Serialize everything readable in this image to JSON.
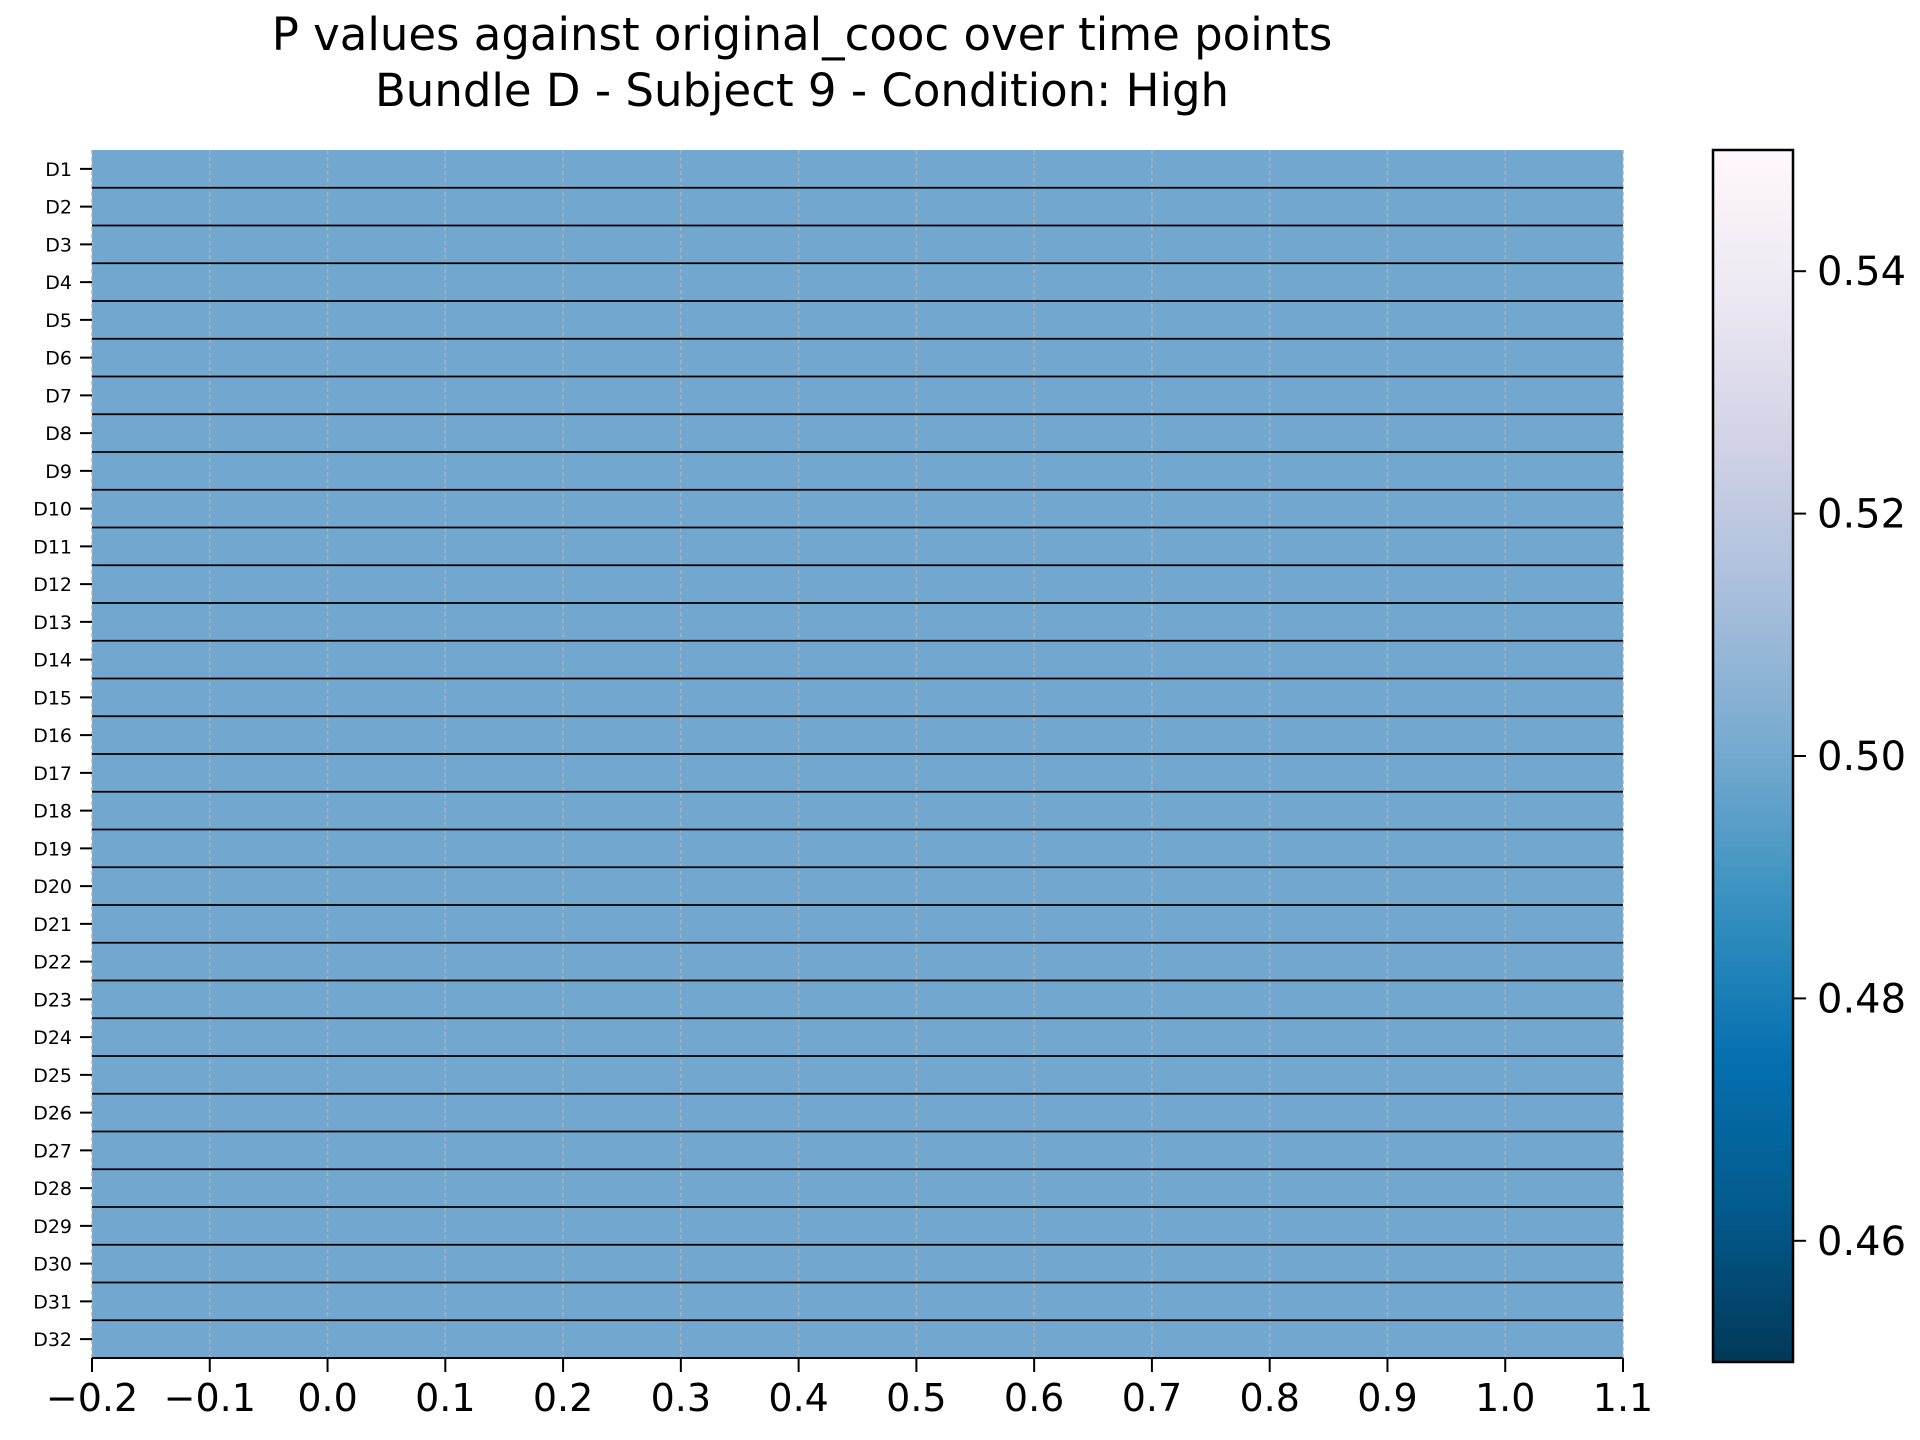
{
  "chart_data": {
    "type": "heatmap",
    "title_lines": [
      "P values against original_cooc over time points",
      "Bundle D - Subject 9 - Condition: High"
    ],
    "xlabel": "",
    "ylabel": "",
    "xlim": [
      -0.2,
      1.1
    ],
    "x_ticks": [
      -0.2,
      -0.1,
      0.0,
      0.1,
      0.2,
      0.3,
      0.4,
      0.5,
      0.6,
      0.7,
      0.8,
      0.9,
      1.0,
      1.1
    ],
    "x_tick_labels": [
      "−0.2",
      "−0.1",
      "0.0",
      "0.1",
      "0.2",
      "0.3",
      "0.4",
      "0.5",
      "0.6",
      "0.7",
      "0.8",
      "0.9",
      "1.0",
      "1.1"
    ],
    "rows": [
      "D1",
      "D2",
      "D3",
      "D4",
      "D5",
      "D6",
      "D7",
      "D8",
      "D9",
      "D10",
      "D11",
      "D12",
      "D13",
      "D14",
      "D15",
      "D16",
      "D17",
      "D18",
      "D19",
      "D20",
      "D21",
      "D22",
      "D23",
      "D24",
      "D25",
      "D26",
      "D27",
      "D28",
      "D29",
      "D30",
      "D31",
      "D32"
    ],
    "value": 0.5,
    "colorbar": {
      "range": [
        0.45,
        0.55
      ],
      "ticks": [
        0.46,
        0.48,
        0.5,
        0.52,
        0.54
      ],
      "tick_labels": [
        "0.46",
        "0.48",
        "0.50",
        "0.52",
        "0.54"
      ],
      "colormap": "PuBu_r"
    },
    "grid": "vertical dashed at x ticks"
  },
  "colors": {
    "cell_fill": "#72a8cf",
    "row_separator": "#000000",
    "grid_line": "#b0b0b0",
    "cmap_stops": [
      "#023858",
      "#045a8d",
      "#0570b0",
      "#3690c0",
      "#74a9cf",
      "#a6bddb",
      "#d0d1e6",
      "#ece7f2",
      "#fff7fb"
    ]
  }
}
